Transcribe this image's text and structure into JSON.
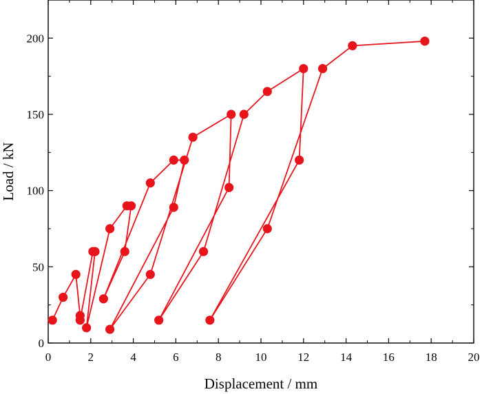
{
  "chart_data": {
    "type": "line",
    "xlabel": "Displacement / mm",
    "ylabel": "Load / kN",
    "xlim": [
      0,
      20
    ],
    "ylim": [
      0,
      225
    ],
    "xticks": [
      0,
      2,
      4,
      6,
      8,
      10,
      12,
      14,
      16,
      18,
      20
    ],
    "yticks": [
      0,
      50,
      100,
      150,
      200
    ],
    "xtick_labels": [
      "0",
      "2",
      "4",
      "6",
      "8",
      "10",
      "12",
      "14",
      "16",
      "18",
      "20"
    ],
    "ytick_labels": [
      "0",
      "50",
      "100",
      "150",
      "200"
    ],
    "grid": false,
    "legend": "none",
    "series": [
      {
        "color": "#e8141c",
        "marker": "circle",
        "x": [
          0.2,
          0.7,
          1.3,
          1.5,
          1.5,
          2.1,
          2.2,
          1.8,
          2.9,
          3.7,
          3.9,
          3.6,
          2.6,
          4.8,
          5.9,
          6.4,
          5.9,
          2.9,
          4.8,
          6.8,
          8.6,
          8.5,
          5.2,
          7.3,
          9.2,
          10.3,
          12.0,
          11.8,
          7.6,
          10.3,
          12.9,
          14.3,
          17.7
        ],
        "y": [
          15,
          30,
          45,
          18,
          15,
          60,
          60,
          10,
          75,
          90,
          90,
          60,
          29,
          105,
          120,
          120,
          89,
          9,
          45,
          135,
          150,
          102,
          15,
          60,
          150,
          165,
          180,
          120,
          15,
          75,
          180,
          195,
          198
        ]
      }
    ]
  }
}
